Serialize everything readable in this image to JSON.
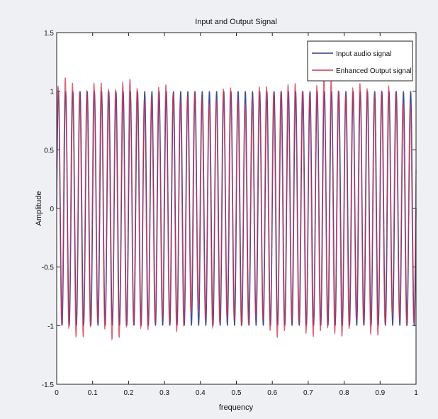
{
  "chart_data": {
    "type": "line",
    "title": "Input and Output Signal",
    "xlabel": "frequency",
    "ylabel": "Amplitude",
    "xlim": [
      0,
      1
    ],
    "ylim": [
      -1.5,
      1.5
    ],
    "x_ticks": [
      "0",
      "0.1",
      "0.2",
      "0.3",
      "0.4",
      "0.5",
      "0.6",
      "0.7",
      "0.8",
      "0.9",
      "1"
    ],
    "y_ticks": [
      "-1.5",
      "-1",
      "-0.5",
      "0",
      "0.5",
      "1",
      "1.5"
    ],
    "grid": false,
    "legend_position": "top-right",
    "series": [
      {
        "name": "Input audio signal",
        "color": "#2b3a8c",
        "cycles": 50,
        "amplitude": 1.0,
        "description": "sinusoid, amplitude 1, ~50 cycles over x in [0,1]"
      },
      {
        "name": "Enhanced Output signal",
        "color": "#d2344f",
        "cycles": 50,
        "amplitude": 1.0,
        "peak_values": [
          1.02,
          1.04,
          1.08,
          1.09,
          1.05,
          1.03
        ],
        "trough_values": [
          -1.03,
          -1.05,
          -1.06,
          -1.04
        ]
      }
    ]
  }
}
